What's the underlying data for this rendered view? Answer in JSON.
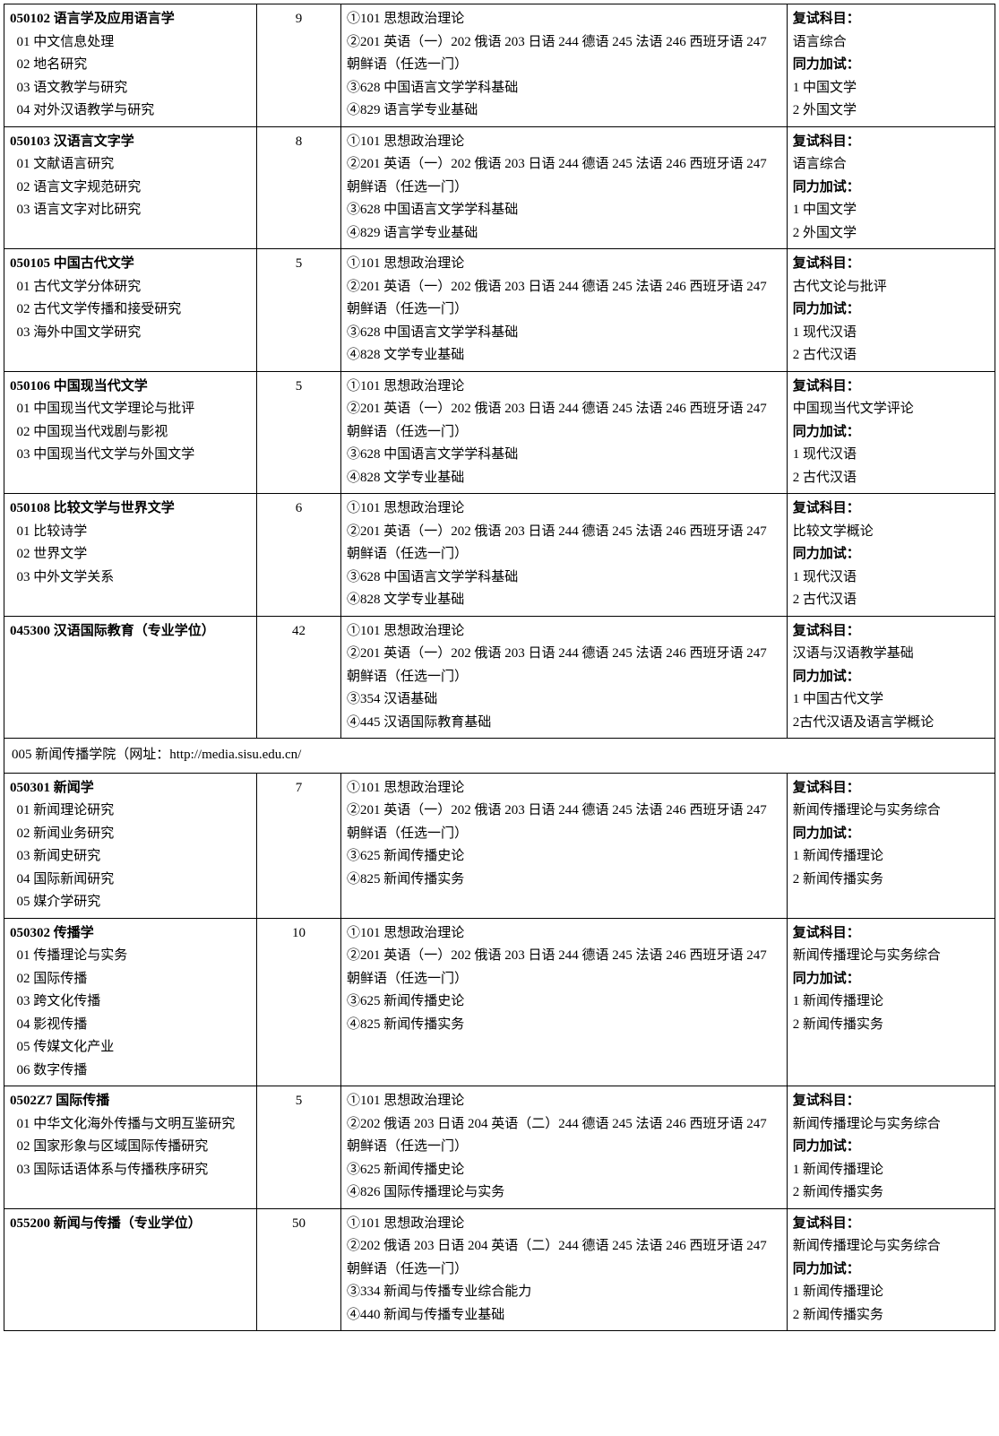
{
  "table": {
    "font_family": "SimSun",
    "font_size_pt": 11,
    "border_color": "#000000",
    "background_color": "#ffffff",
    "column_widths_pct": [
      25.5,
      8.5,
      45,
      21
    ],
    "rows": [
      {
        "type": "major",
        "code_title": "050102 语言学及应用语言学",
        "directions": [
          "01 中文信息处理",
          "02 地名研究",
          "03 语文教学与研究",
          "04 对外汉语教学与研究"
        ],
        "quota": "9",
        "exams": [
          "①101 思想政治理论",
          "②201 英语（一）202 俄语 203 日语 244 德语 245 法语 246 西班牙语 247 朝鲜语（任选一门）",
          "③628 中国语言文学学科基础",
          "④829 语言学专业基础"
        ],
        "retest_label": "复试科目：",
        "retest_items": [
          "语言综合"
        ],
        "addon_label": "同力加试：",
        "addon_items": [
          "1 中国文学",
          "2 外国文学"
        ]
      },
      {
        "type": "major",
        "code_title": "050103 汉语言文字学",
        "directions": [
          "01 文献语言研究",
          "02 语言文字规范研究",
          "03 语言文字对比研究"
        ],
        "quota": "8",
        "exams": [
          "①101 思想政治理论",
          "②201 英语（一）202 俄语 203 日语 244 德语 245 法语 246 西班牙语 247 朝鲜语（任选一门）",
          "③628 中国语言文学学科基础",
          "④829 语言学专业基础"
        ],
        "retest_label": "复试科目：",
        "retest_items": [
          "语言综合"
        ],
        "addon_label": "同力加试：",
        "addon_items": [
          "1 中国文学",
          "2 外国文学"
        ]
      },
      {
        "type": "major",
        "code_title": "050105 中国古代文学",
        "directions": [
          "01 古代文学分体研究",
          "02 古代文学传播和接受研究",
          "03 海外中国文学研究"
        ],
        "quota": "5",
        "exams": [
          "①101 思想政治理论",
          "②201 英语（一）202 俄语 203 日语 244 德语 245 法语 246 西班牙语 247 朝鲜语（任选一门）",
          "③628 中国语言文学学科基础",
          "④828 文学专业基础"
        ],
        "retest_label": "复试科目：",
        "retest_items": [
          "古代文论与批评"
        ],
        "addon_label": "同力加试：",
        "addon_items": [
          "1 现代汉语",
          "2 古代汉语"
        ]
      },
      {
        "type": "major",
        "code_title": "050106 中国现当代文学",
        "directions": [
          "01 中国现当代文学理论与批评",
          "02 中国现当代戏剧与影视",
          "03 中国现当代文学与外国文学"
        ],
        "quota": "5",
        "exams": [
          "①101 思想政治理论",
          "②201 英语（一）202 俄语 203 日语 244 德语 245 法语 246 西班牙语 247 朝鲜语（任选一门）",
          "③628 中国语言文学学科基础",
          "④828 文学专业基础"
        ],
        "retest_label": "复试科目：",
        "retest_items": [
          "中国现当代文学评论"
        ],
        "addon_label": "同力加试：",
        "addon_items": [
          "1 现代汉语",
          "2 古代汉语"
        ]
      },
      {
        "type": "major",
        "code_title": "050108 比较文学与世界文学",
        "directions": [
          "01 比较诗学",
          "02 世界文学",
          "03 中外文学关系"
        ],
        "quota": "6",
        "exams": [
          "①101 思想政治理论",
          "②201 英语（一）202 俄语 203 日语 244 德语 245 法语 246 西班牙语 247 朝鲜语（任选一门）",
          "③628 中国语言文学学科基础",
          "④828 文学专业基础"
        ],
        "retest_label": "复试科目：",
        "retest_items": [
          "比较文学概论"
        ],
        "addon_label": "同力加试：",
        "addon_items": [
          "1 现代汉语",
          "2 古代汉语"
        ]
      },
      {
        "type": "major",
        "code_title": "045300 汉语国际教育（专业学位）",
        "directions": [],
        "quota": "42",
        "exams": [
          "①101 思想政治理论",
          "②201 英语（一）202 俄语 203 日语 244 德语 245 法语 246 西班牙语 247 朝鲜语（任选一门）",
          "③354 汉语基础",
          "④445 汉语国际教育基础"
        ],
        "retest_label": "复试科目：",
        "retest_items": [
          "汉语与汉语教学基础"
        ],
        "addon_label": "同力加试：",
        "addon_items": [
          "1 中国古代文学",
          "2古代汉语及语言学概论"
        ]
      },
      {
        "type": "section",
        "text": "005 新闻传播学院（网址：http://media.sisu.edu.cn/"
      },
      {
        "type": "major",
        "code_title": "050301 新闻学",
        "directions": [
          "01 新闻理论研究",
          "02 新闻业务研究",
          "03 新闻史研究",
          "04 国际新闻研究",
          "05 媒介学研究"
        ],
        "quota": "7",
        "exams": [
          "①101 思想政治理论",
          "②201 英语（一）202 俄语 203 日语 244 德语 245 法语 246 西班牙语 247 朝鲜语（任选一门）",
          "③625 新闻传播史论",
          "④825 新闻传播实务"
        ],
        "retest_label": "复试科目：",
        "retest_items": [
          "新闻传播理论与实务综合"
        ],
        "addon_label": "同力加试：",
        "addon_items": [
          "1 新闻传播理论",
          "2 新闻传播实务"
        ]
      },
      {
        "type": "major",
        "code_title": "050302 传播学",
        "directions": [
          "01 传播理论与实务",
          "02 国际传播",
          "03 跨文化传播",
          "04 影视传播",
          "05 传媒文化产业",
          "06 数字传播"
        ],
        "quota": "10",
        "exams": [
          "①101 思想政治理论",
          "②201 英语（一）202 俄语 203 日语 244 德语 245 法语 246 西班牙语 247 朝鲜语（任选一门）",
          "③625 新闻传播史论",
          "④825 新闻传播实务"
        ],
        "retest_label": "复试科目：",
        "retest_items": [
          "新闻传播理论与实务综合"
        ],
        "addon_label": "同力加试：",
        "addon_items": [
          "1 新闻传播理论",
          "2 新闻传播实务"
        ]
      },
      {
        "type": "major",
        "code_title": "0502Z7 国际传播",
        "directions": [
          "01 中华文化海外传播与文明互鉴研究",
          "02 国家形象与区域国际传播研究",
          "03 国际话语体系与传播秩序研究"
        ],
        "quota": "5",
        "exams": [
          "①101 思想政治理论",
          "②202 俄语 203 日语 204 英语（二）244 德语 245 法语 246 西班牙语 247 朝鲜语（任选一门）",
          "③625 新闻传播史论",
          "④826 国际传播理论与实务"
        ],
        "retest_label": "复试科目：",
        "retest_items": [
          "新闻传播理论与实务综合"
        ],
        "addon_label": "同力加试：",
        "addon_items": [
          "1 新闻传播理论",
          "2 新闻传播实务"
        ]
      },
      {
        "type": "major",
        "code_title": "055200 新闻与传播（专业学位）",
        "directions": [],
        "quota": "50",
        "exams": [
          "①101 思想政治理论",
          "②202 俄语 203 日语 204 英语（二）244 德语 245 法语 246 西班牙语 247 朝鲜语（任选一门）",
          "③334 新闻与传播专业综合能力",
          "④440 新闻与传播专业基础"
        ],
        "retest_label": "复试科目：",
        "retest_items": [
          "新闻传播理论与实务综合"
        ],
        "addon_label": "同力加试：",
        "addon_items": [
          "1 新闻传播理论",
          "2 新闻传播实务"
        ]
      }
    ]
  }
}
